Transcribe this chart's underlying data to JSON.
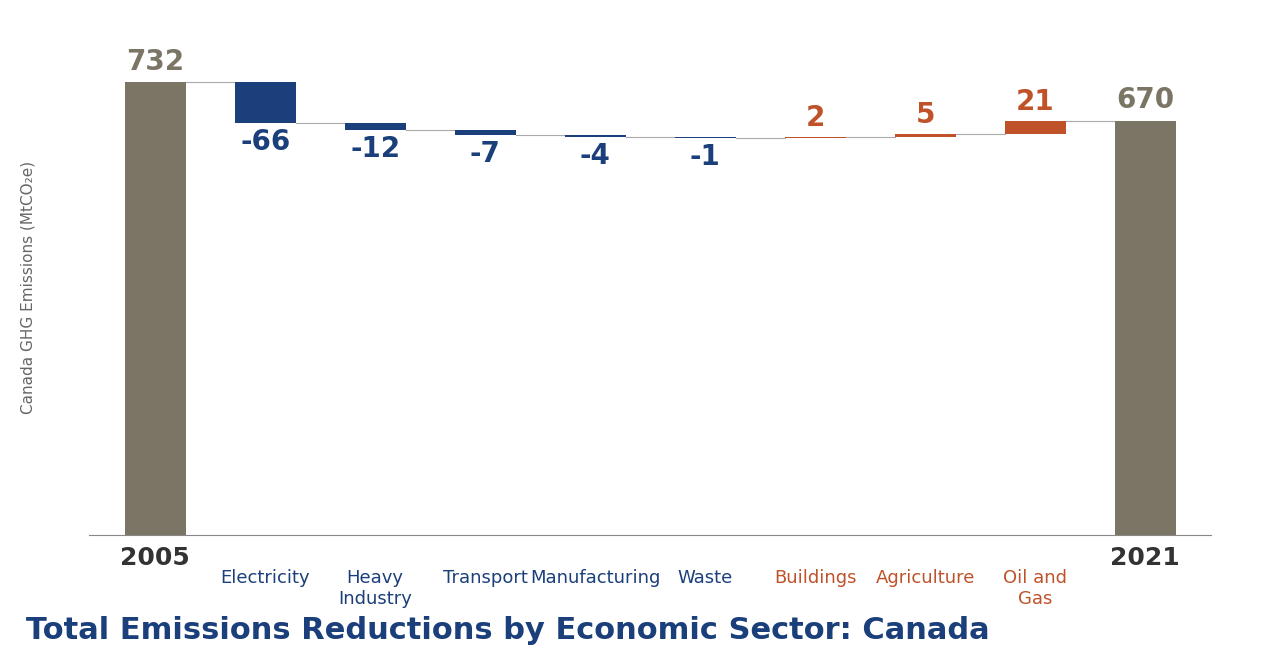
{
  "title": "Total Emissions Reductions by Economic Sector: Canada",
  "ylabel": "Canada GHG Emissions (MtCO₂e)",
  "base_2005": 732,
  "base_2021": 670,
  "sectors": [
    "Electricity",
    "Heavy\nIndustry",
    "Transport",
    "Manufacturing",
    "Waste",
    "Buildings",
    "Agriculture",
    "Oil and\nGas"
  ],
  "values": [
    -66,
    -12,
    -7,
    -4,
    -1,
    2,
    5,
    21
  ],
  "bar_color_decrease": "#1a3f7a",
  "bar_color_increase": "#c0522a",
  "base_color": "#7a7564",
  "label_color_decrease": "#1a3f7a",
  "label_color_increase": "#c0522a",
  "label_color_base": "#7a7564",
  "background_color": "#ffffff",
  "footer_bg_color": "#d9d3c5",
  "pembina_bg_color": "#1a8fc7",
  "title_color": "#1a3f7a",
  "ylim_min": 0,
  "ylim_max": 800,
  "bar_width": 0.55,
  "label_fontsize": 18,
  "title_fontsize": 22,
  "value_label_fontsize": 20,
  "sector_label_fontsize": 13,
  "axis_label_fontsize": 11,
  "connector_color": "#aaaaaa",
  "spine_color": "#888888"
}
